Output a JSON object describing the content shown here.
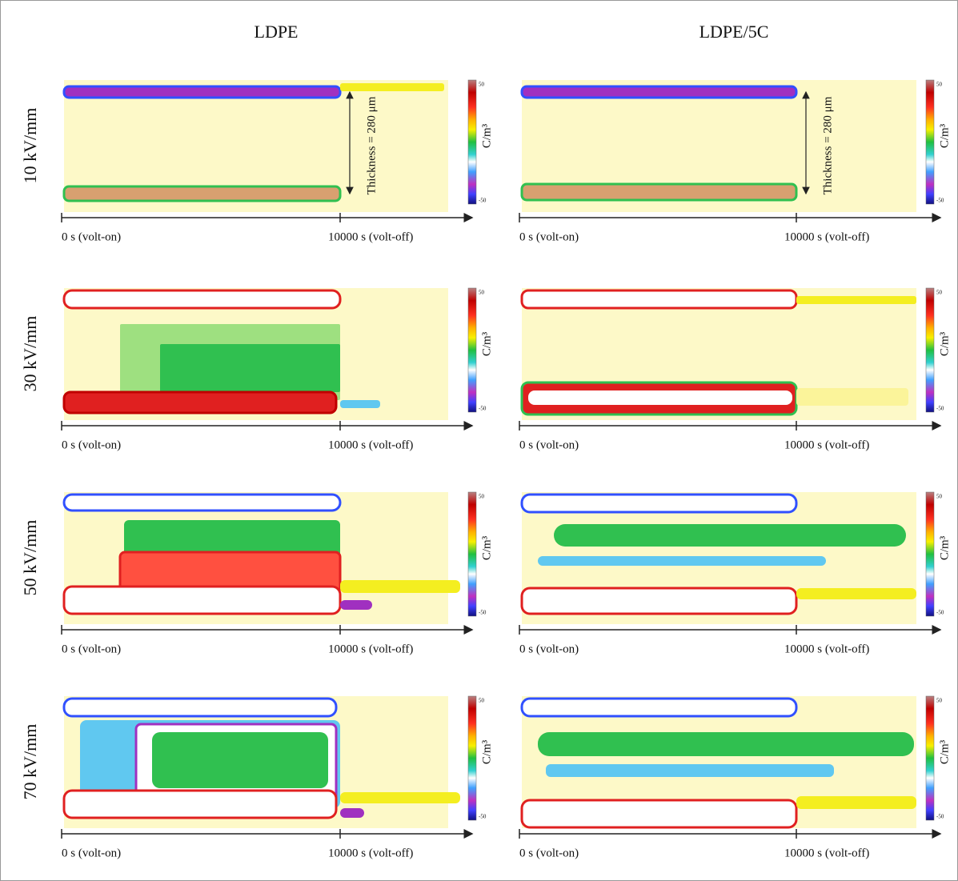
{
  "columns": [
    "LDPE",
    "LDPE/5C"
  ],
  "rows": [
    "10 kV/mm",
    "30 kV/mm",
    "50 kV/mm",
    "70 kV/mm"
  ],
  "time_axis": {
    "start": "0 s (volt-on)",
    "end": "10000 s (volt-off)"
  },
  "colorbar": {
    "unit": "C/m³",
    "max": "50",
    "min": "-50"
  },
  "annotation": "Thickness = 280 μm"
}
